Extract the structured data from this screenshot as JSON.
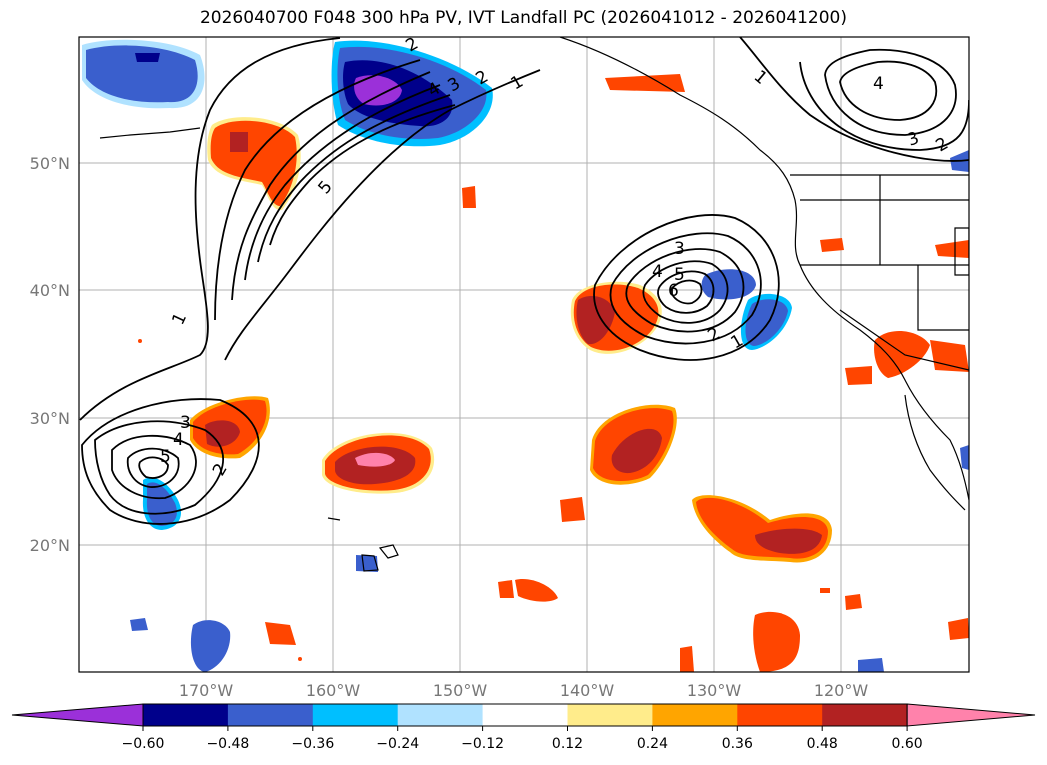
{
  "title": "2026040700 F048 300 hPa PV, IVT Landfall PC (2026041012 - 2026041200)",
  "map": {
    "lon_ticks": [
      "170°W",
      "160°W",
      "150°W",
      "140°W",
      "130°W",
      "120°W"
    ],
    "lat_ticks": [
      "50°N",
      "40°N",
      "30°N",
      "20°N"
    ],
    "contour_labels": {
      "northwest": [
        "1",
        "2",
        "3",
        "4",
        "5",
        "2",
        "1"
      ],
      "southwest": [
        "3",
        "4",
        "5",
        "2",
        "1"
      ],
      "central": [
        "3",
        "4",
        "5",
        "6",
        "2",
        "1"
      ],
      "northeast": [
        "1",
        "4",
        "3",
        "2"
      ]
    }
  },
  "colorbar": {
    "ticks": [
      "−0.60",
      "−0.48",
      "−0.36",
      "−0.24",
      "−0.12",
      "0.12",
      "0.24",
      "0.36",
      "0.48",
      "0.60"
    ],
    "colors": [
      "#9b30d9",
      "#00008b",
      "#3a5fcd",
      "#00bfff",
      "#b0e2ff",
      "#ffffff",
      "#ffec8b",
      "#ffa500",
      "#ff4500",
      "#b22222",
      "#ff82ab"
    ]
  }
}
